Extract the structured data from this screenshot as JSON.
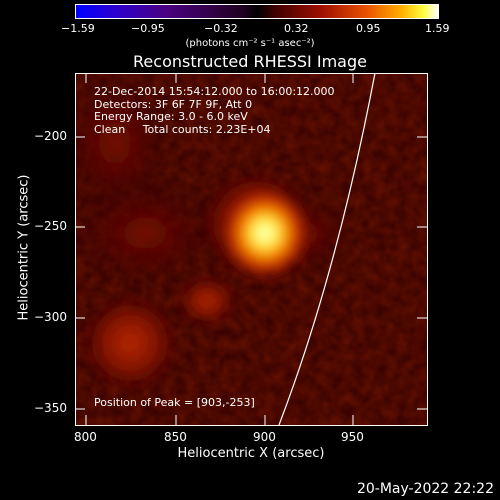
{
  "colorbar": {
    "ticks": [
      "−1.59",
      "−0.95",
      "−0.32",
      "0.32",
      "0.95",
      "1.59"
    ],
    "unit": "(photons cm⁻² s⁻¹ asec⁻²)"
  },
  "title": "Reconstructed RHESSI Image",
  "info": {
    "line1": "22-Dec-2014 15:54:12.000 to 16:00:12.000",
    "line2": "Detectors: 3F 6F 7F 9F, Att 0",
    "line3": "Energy Range: 3.0 - 6.0 keV",
    "line4": "Clean     Total counts: 2.23E+04"
  },
  "peak": "Position of Peak = [903,-253]",
  "axes": {
    "xlabel": "Heliocentric X (arcsec)",
    "ylabel": "Heliocentric Y (arcsec)",
    "xticks": [
      "800",
      "850",
      "900",
      "950"
    ],
    "yticks": [
      "−200",
      "−250",
      "−300",
      "−350"
    ]
  },
  "footer": "20-May-2022 22:22"
}
